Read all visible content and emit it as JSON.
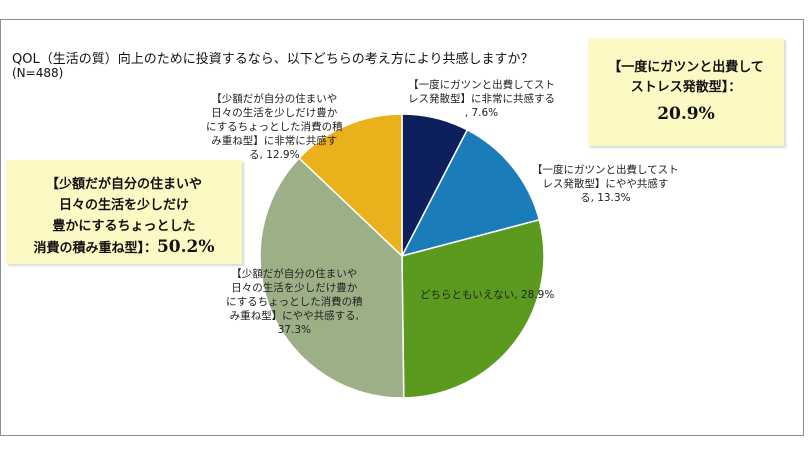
{
  "title": "QOL（生活の質）向上のために投資するなら、以下どちらの考え方により共感しますか？",
  "subtitle": "(N=488)",
  "callouts": {
    "right_text": "【一度にガツンと出費して\nストレス発散型】：",
    "right_pct": "20.9%",
    "left_text": "【少額だが自分の住まいや\n日々の生活を少しだけ\n豊かにするちょっとした\n消費の積み重ね型】：",
    "left_pct": "50.2%"
  },
  "chart_data": {
    "type": "pie",
    "title": "",
    "start": "top, clockwise",
    "slices": [
      {
        "label": "【一度にガツンと出費してスト\nレス発散型】に非常に共感する\n, 7.6%",
        "value": 7.6,
        "color": "#0d1f5c"
      },
      {
        "label": "【一度にガツンと出費してスト\nレス発散型】にやや共感す\nる, 13.3%",
        "value": 13.3,
        "color": "#1b7cba"
      },
      {
        "label": "どちらともいえない, 28.9%",
        "value": 28.9,
        "color": "#5a9a1e"
      },
      {
        "label": "【少額だが自分の住まいや\n日々の生活を少しだけ豊か\nにするちょっとした消費の積\nみ重ね型】にやや共感する,\n37.3%",
        "value": 37.3,
        "color": "#9caf86"
      },
      {
        "label": "【少額だが自分の住まいや\n日々の生活を少しだけ豊か\nにするちょっとした消費の積\nみ重ね型】に非常に共感す\nる, 12.9%",
        "value": 12.9,
        "color": "#eab11d"
      }
    ]
  }
}
